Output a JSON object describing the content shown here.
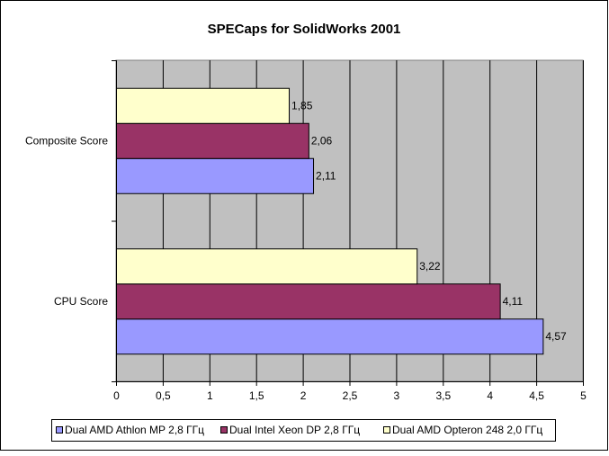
{
  "colors": {
    "background": "#ffffff",
    "plot_area": "#c0c0c0",
    "gridline": "#000000",
    "series_1": "#9999ff",
    "series_2": "#993366",
    "series_3": "#ffffcc"
  },
  "chart_data": {
    "type": "bar",
    "orientation": "horizontal",
    "title": "SPECaps for SolidWorks 2001",
    "xlabel": "",
    "ylabel": "",
    "categories": [
      "Composite Score",
      "CPU Score"
    ],
    "xlim": [
      0,
      5
    ],
    "x_ticks": [
      "0",
      "0,5",
      "1",
      "1,5",
      "2",
      "2,5",
      "3",
      "3,5",
      "4",
      "4,5",
      "5"
    ],
    "x_tick_values": [
      0,
      0.5,
      1,
      1.5,
      2,
      2.5,
      3,
      3.5,
      4,
      4.5,
      5
    ],
    "grid": true,
    "legend_position": "bottom",
    "series": [
      {
        "name": "Dual AMD Athlon MP 2,8 ГГц",
        "values": [
          2.11,
          4.57
        ],
        "labels": [
          "2,11",
          "4,57"
        ]
      },
      {
        "name": "Dual Intel Xeon DP 2,8 ГГц",
        "values": [
          2.06,
          4.11
        ],
        "labels": [
          "2,06",
          "4,11"
        ]
      },
      {
        "name": "Dual AMD Opteron 248 2,0 ГГц",
        "values": [
          1.85,
          3.22
        ],
        "labels": [
          "1,85",
          "3,22"
        ]
      }
    ]
  }
}
